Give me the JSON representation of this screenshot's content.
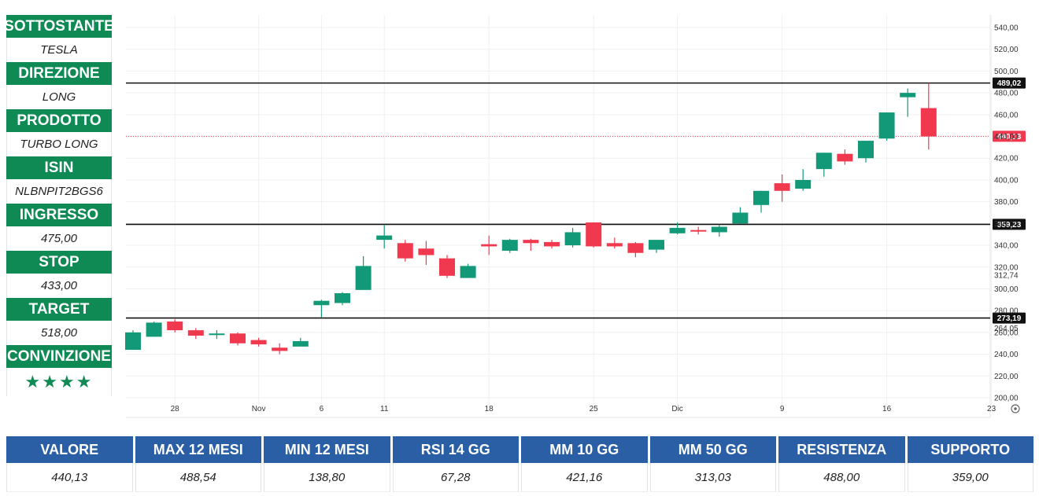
{
  "sidebar": {
    "items": [
      {
        "label": "SOTTOSTANTE",
        "value": "TESLA"
      },
      {
        "label": "DIREZIONE",
        "value": "LONG"
      },
      {
        "label": "PRODOTTO",
        "value": "TURBO LONG"
      },
      {
        "label": "ISIN",
        "value": "NLBNPIT2BGS6"
      },
      {
        "label": "INGRESSO",
        "value": "475,00"
      },
      {
        "label": "STOP",
        "value": "433,00"
      },
      {
        "label": "TARGET",
        "value": "518,00"
      },
      {
        "label": "CONVINZIONE",
        "value": "★★★★"
      }
    ]
  },
  "colors": {
    "green_label": "#0f8a55",
    "blue_header": "#2a5fa6",
    "bull": "#129a78",
    "bear": "#f0394f"
  },
  "chart_data": {
    "type": "candlestick",
    "ylim": [
      200,
      550
    ],
    "yticks": [
      "200,00",
      "220,00",
      "240,00",
      "260,00",
      "280,00",
      "300,00",
      "320,00",
      "340,00",
      "360,00",
      "380,00",
      "400,00",
      "420,00",
      "440,00",
      "460,00",
      "480,00",
      "500,00",
      "520,00",
      "540,00"
    ],
    "xticks": [
      {
        "label": "28",
        "i": 2
      },
      {
        "label": "Nov",
        "i": 6
      },
      {
        "label": "6",
        "i": 9
      },
      {
        "label": "11",
        "i": 12
      },
      {
        "label": "18",
        "i": 17
      },
      {
        "label": "25",
        "i": 22
      },
      {
        "label": "Dic",
        "i": 26
      },
      {
        "label": "9",
        "i": 31
      },
      {
        "label": "16",
        "i": 36
      },
      {
        "label": "23",
        "i": 41
      }
    ],
    "levels": [
      {
        "value": 489.02,
        "label": "489,02",
        "style": "solid"
      },
      {
        "value": 359.23,
        "label": "359,23",
        "style": "solid"
      },
      {
        "value": 273.19,
        "label": "273,19",
        "style": "solid"
      },
      {
        "value": 440.13,
        "label": "440,13",
        "style": "dotted"
      }
    ],
    "axis_notes": [
      {
        "value": 312.74,
        "label": "312,74"
      },
      {
        "value": 264.05,
        "label": "264,05"
      }
    ],
    "candles": [
      {
        "o": 244,
        "h": 262,
        "l": 244,
        "c": 260
      },
      {
        "o": 256,
        "h": 270,
        "l": 256,
        "c": 269
      },
      {
        "o": 270,
        "h": 272,
        "l": 260,
        "c": 262
      },
      {
        "o": 262,
        "h": 264,
        "l": 254,
        "c": 257
      },
      {
        "o": 259,
        "h": 262,
        "l": 254,
        "c": 259
      },
      {
        "o": 259,
        "h": 260,
        "l": 248,
        "c": 250
      },
      {
        "o": 253,
        "h": 255,
        "l": 247,
        "c": 249
      },
      {
        "o": 246,
        "h": 250,
        "l": 240,
        "c": 243
      },
      {
        "o": 247,
        "h": 255,
        "l": 247,
        "c": 252
      },
      {
        "o": 285,
        "h": 290,
        "l": 274,
        "c": 289
      },
      {
        "o": 287,
        "h": 297,
        "l": 285,
        "c": 296
      },
      {
        "o": 299,
        "h": 330,
        "l": 299,
        "c": 321
      },
      {
        "o": 345,
        "h": 359,
        "l": 337,
        "c": 349
      },
      {
        "o": 342,
        "h": 345,
        "l": 325,
        "c": 328
      },
      {
        "o": 337,
        "h": 344,
        "l": 322,
        "c": 331
      },
      {
        "o": 328,
        "h": 331,
        "l": 310,
        "c": 312
      },
      {
        "o": 310,
        "h": 323,
        "l": 310,
        "c": 321
      },
      {
        "o": 341,
        "h": 349,
        "l": 331,
        "c": 339
      },
      {
        "o": 335,
        "h": 346,
        "l": 333,
        "c": 345
      },
      {
        "o": 345,
        "h": 346,
        "l": 335,
        "c": 342
      },
      {
        "o": 343,
        "h": 345,
        "l": 337,
        "c": 339
      },
      {
        "o": 340,
        "h": 356,
        "l": 338,
        "c": 352
      },
      {
        "o": 361,
        "h": 361,
        "l": 338,
        "c": 339
      },
      {
        "o": 342,
        "h": 347,
        "l": 337,
        "c": 339
      },
      {
        "o": 342,
        "h": 343,
        "l": 329,
        "c": 333
      },
      {
        "o": 336,
        "h": 345,
        "l": 333,
        "c": 345
      },
      {
        "o": 351,
        "h": 361,
        "l": 350,
        "c": 356
      },
      {
        "o": 354,
        "h": 357,
        "l": 350,
        "c": 353
      },
      {
        "o": 352,
        "h": 359,
        "l": 348,
        "c": 357
      },
      {
        "o": 360,
        "h": 375,
        "l": 360,
        "c": 370
      },
      {
        "o": 377,
        "h": 390,
        "l": 370,
        "c": 390
      },
      {
        "o": 397,
        "h": 405,
        "l": 380,
        "c": 390
      },
      {
        "o": 392,
        "h": 410,
        "l": 390,
        "c": 400
      },
      {
        "o": 410,
        "h": 425,
        "l": 403,
        "c": 425
      },
      {
        "o": 424,
        "h": 428,
        "l": 414,
        "c": 417
      },
      {
        "o": 420,
        "h": 436,
        "l": 416,
        "c": 436
      },
      {
        "o": 438,
        "h": 462,
        "l": 436,
        "c": 462
      },
      {
        "o": 476,
        "h": 484,
        "l": 458,
        "c": 480
      },
      {
        "o": 466,
        "h": 489,
        "l": 428,
        "c": 440
      }
    ]
  },
  "metrics": [
    {
      "label": "VALORE",
      "value": "440,13"
    },
    {
      "label": "MAX 12 MESI",
      "value": "488,54"
    },
    {
      "label": "MIN 12 MESI",
      "value": "138,80"
    },
    {
      "label": "RSI 14 GG",
      "value": "67,28"
    },
    {
      "label": "MM 10 GG",
      "value": "421,16"
    },
    {
      "label": "MM 50 GG",
      "value": "313,03"
    },
    {
      "label": "RESISTENZA",
      "value": "488,00"
    },
    {
      "label": "SUPPORTO",
      "value": "359,00"
    }
  ]
}
